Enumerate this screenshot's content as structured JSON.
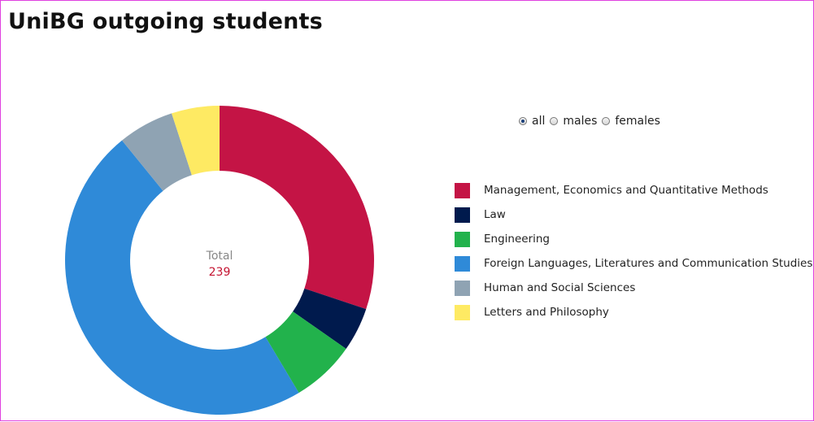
{
  "title": "UniBG outgoing students",
  "filters": {
    "options": [
      {
        "label": "all",
        "checked": true
      },
      {
        "label": "males",
        "checked": false
      },
      {
        "label": "females",
        "checked": false
      }
    ]
  },
  "chart_data": {
    "type": "pie",
    "donut": true,
    "center_label": "Total",
    "center_value": "239",
    "total": 239,
    "categories": [
      "Management, Economics and Quantitative Methods",
      "Law",
      "Engineering",
      "Foreign Languages, Literatures and Communication Studies",
      "Human and Social Sciences",
      "Letters and Philosophy"
    ],
    "values": [
      72,
      11,
      16,
      114,
      14,
      12
    ],
    "colors": [
      "#c41445",
      "#001a4d",
      "#22b24c",
      "#2f8ad8",
      "#8fa3b3",
      "#feea63"
    ],
    "legend_position": "right"
  }
}
